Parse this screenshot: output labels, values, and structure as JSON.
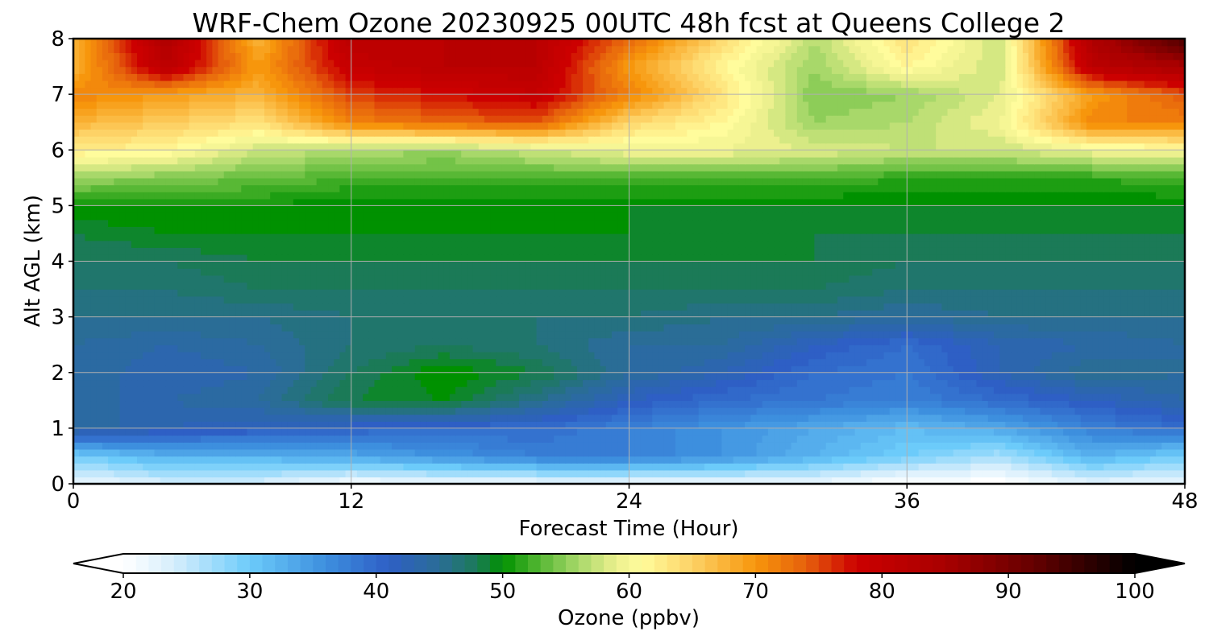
{
  "chart_data": {
    "type": "heatmap",
    "title": "WRF-Chem Ozone  20230925 00UTC 48h fcst at Queens College 2",
    "xlabel": "Forecast Time (Hour)",
    "ylabel": "Alt AGL (km)",
    "xlim": [
      0,
      48
    ],
    "ylim": [
      0,
      8
    ],
    "x_ticks": [
      0,
      12,
      24,
      36,
      48
    ],
    "y_ticks": [
      0,
      1,
      2,
      3,
      4,
      5,
      6,
      7,
      8
    ],
    "grid": true,
    "x_hours": [
      0,
      4,
      8,
      12,
      16,
      20,
      24,
      28,
      32,
      36,
      40,
      44,
      48
    ],
    "altitude_km": [
      0,
      0.5,
      1,
      1.5,
      2,
      2.5,
      3,
      3.5,
      4,
      4.5,
      5,
      5.5,
      6,
      6.5,
      7,
      7.5,
      8
    ],
    "ozone_ppbv_by_altitude": [
      [
        22,
        24,
        24,
        21,
        22,
        22,
        22,
        22,
        22,
        20,
        20,
        23,
        22
      ],
      [
        30,
        33,
        33,
        34,
        36,
        38,
        38,
        36,
        33,
        30,
        27,
        33,
        30
      ],
      [
        45,
        43,
        42,
        41,
        40,
        40,
        38,
        36,
        34,
        32,
        34,
        38,
        40
      ],
      [
        44,
        44,
        45,
        49,
        50,
        46,
        42,
        40,
        39,
        38,
        40,
        42,
        44
      ],
      [
        45,
        43,
        44,
        48,
        51,
        49,
        45,
        43,
        40,
        39,
        43,
        46,
        45
      ],
      [
        45,
        44,
        45,
        47,
        48,
        47,
        45,
        45,
        42,
        40,
        43,
        44,
        45
      ],
      [
        46,
        46,
        46,
        47,
        47,
        47,
        47,
        46,
        46,
        45,
        46,
        46,
        46
      ],
      [
        47,
        47,
        48,
        48,
        48,
        48,
        48,
        48,
        48,
        47,
        47,
        47,
        47
      ],
      [
        48,
        48,
        49,
        49,
        49,
        49,
        49,
        49,
        49,
        48,
        48,
        48,
        48
      ],
      [
        49,
        50,
        50,
        50,
        50,
        50,
        50,
        49,
        49,
        49,
        49,
        49,
        49
      ],
      [
        51,
        51,
        51,
        50,
        50,
        50,
        50,
        50,
        50,
        50,
        50,
        50,
        50
      ],
      [
        56,
        55,
        54,
        53,
        53,
        53,
        53,
        53,
        53,
        52,
        52,
        52,
        53
      ],
      [
        63,
        62,
        58,
        57,
        56,
        58,
        60,
        60,
        59,
        58,
        58,
        60,
        61
      ],
      [
        68,
        66,
        64,
        72,
        74,
        75,
        65,
        62,
        56,
        57,
        60,
        72,
        72
      ],
      [
        72,
        70,
        68,
        76,
        78,
        80,
        72,
        64,
        55,
        56,
        59,
        70,
        75
      ],
      [
        68,
        82,
        70,
        80,
        82,
        82,
        70,
        62,
        56,
        62,
        58,
        82,
        85
      ],
      [
        68,
        84,
        68,
        82,
        82,
        82,
        74,
        65,
        57,
        64,
        58,
        84,
        95
      ]
    ],
    "colorbar": {
      "label": "Ozone  (ppbv)",
      "min": 20,
      "max": 100,
      "ticks": [
        20,
        30,
        40,
        50,
        60,
        70,
        80,
        90,
        100
      ],
      "extend": "both"
    },
    "colormap_stops": [
      [
        20,
        "#ffffff"
      ],
      [
        24,
        "#d6eefc"
      ],
      [
        30,
        "#6ccbfa"
      ],
      [
        36,
        "#3d8fde"
      ],
      [
        41,
        "#2e5fc5"
      ],
      [
        45,
        "#2a6d96"
      ],
      [
        48,
        "#1b7a57"
      ],
      [
        50,
        "#009100"
      ],
      [
        53,
        "#58b835"
      ],
      [
        56,
        "#a8d86a"
      ],
      [
        59,
        "#ecf08e"
      ],
      [
        61,
        "#fffc9c"
      ],
      [
        65,
        "#fdd266"
      ],
      [
        70,
        "#f7960c"
      ],
      [
        74,
        "#e6600c"
      ],
      [
        78,
        "#cc0000"
      ],
      [
        85,
        "#a80000"
      ],
      [
        92,
        "#650000"
      ],
      [
        100,
        "#000000"
      ]
    ]
  }
}
